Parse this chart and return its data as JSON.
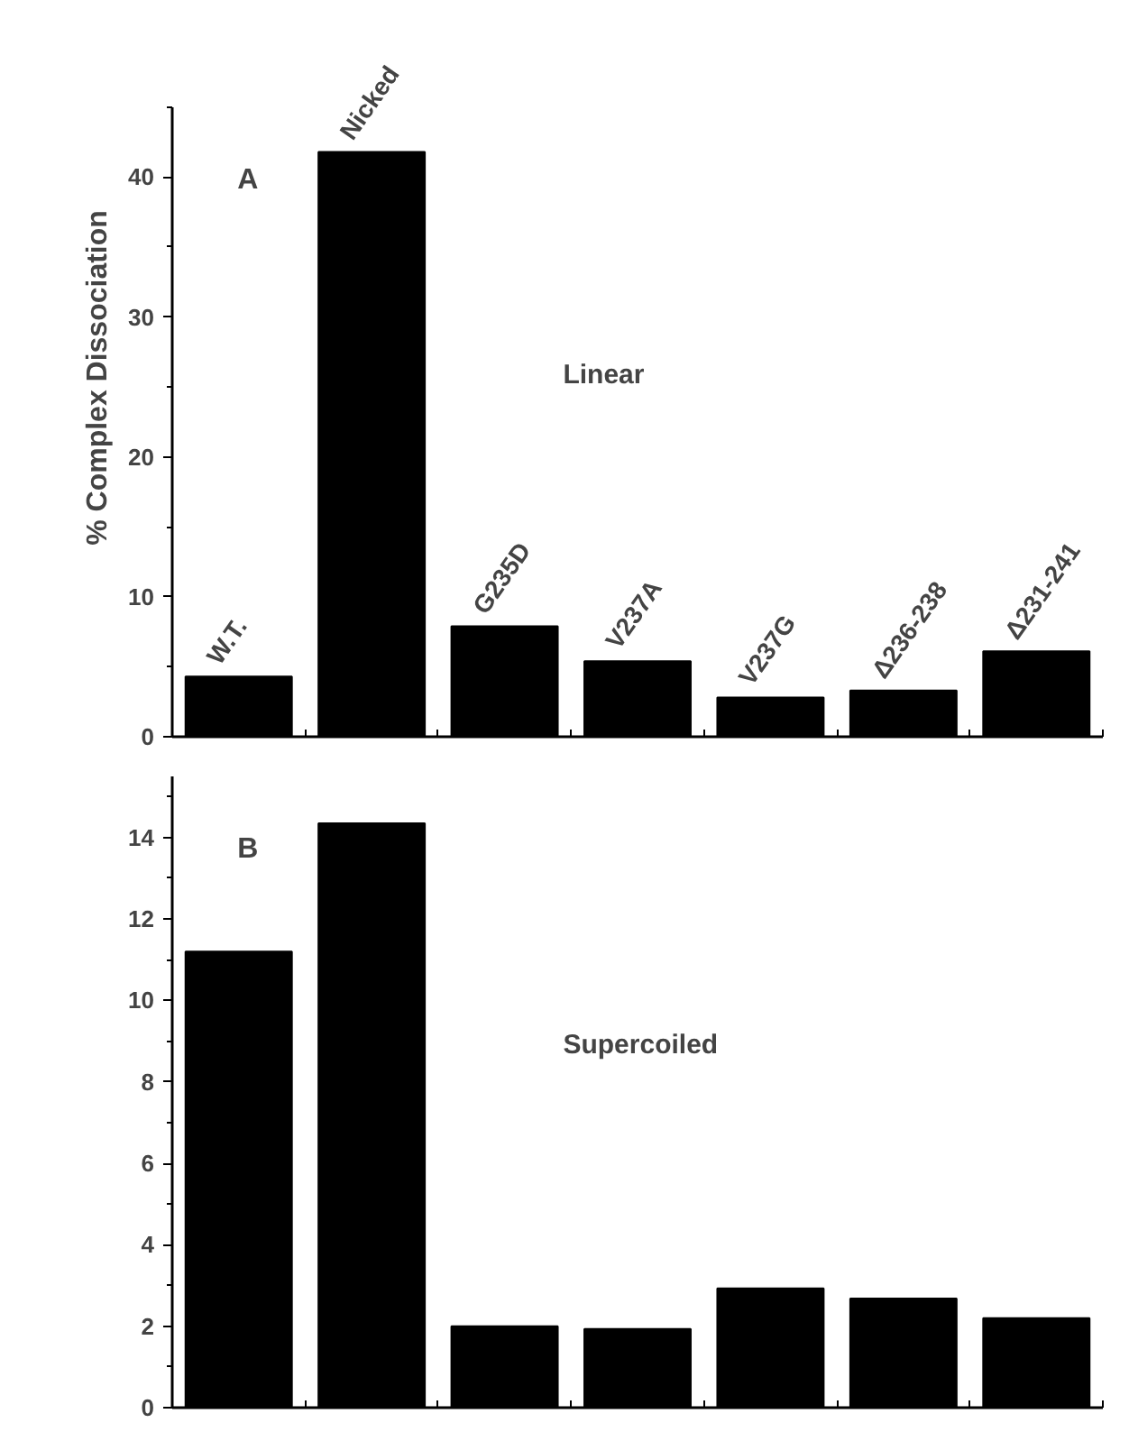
{
  "chart_data": [
    {
      "type": "bar",
      "ylabel": "% Complex Dissociation",
      "annotations": [
        "A",
        "Linear"
      ],
      "categories": [
        "W.T.",
        "Nicked",
        "G235D",
        "V237A",
        "V237G",
        "Δ236-238",
        "Δ231-241"
      ],
      "values": [
        4.3,
        41.8,
        7.9,
        5.4,
        2.8,
        3.3,
        6.1
      ],
      "color": "#000000",
      "ylim": [
        0,
        45
      ],
      "yticks": [
        0,
        10,
        20,
        30,
        40
      ],
      "grid": false,
      "tick_labels": "y"
    },
    {
      "type": "bar",
      "annotations": [
        "B",
        "Supercoiled"
      ],
      "categories": [
        null,
        null,
        null,
        null,
        null,
        null,
        null
      ],
      "values": [
        11.2,
        14.35,
        2.0,
        1.93,
        2.93,
        2.68,
        2.2
      ],
      "color": "#000000",
      "ylim": [
        0,
        15.5
      ],
      "yticks": [
        0,
        2,
        4,
        6,
        8,
        10,
        12,
        14
      ],
      "grid": false,
      "tick_labels": "y"
    }
  ]
}
